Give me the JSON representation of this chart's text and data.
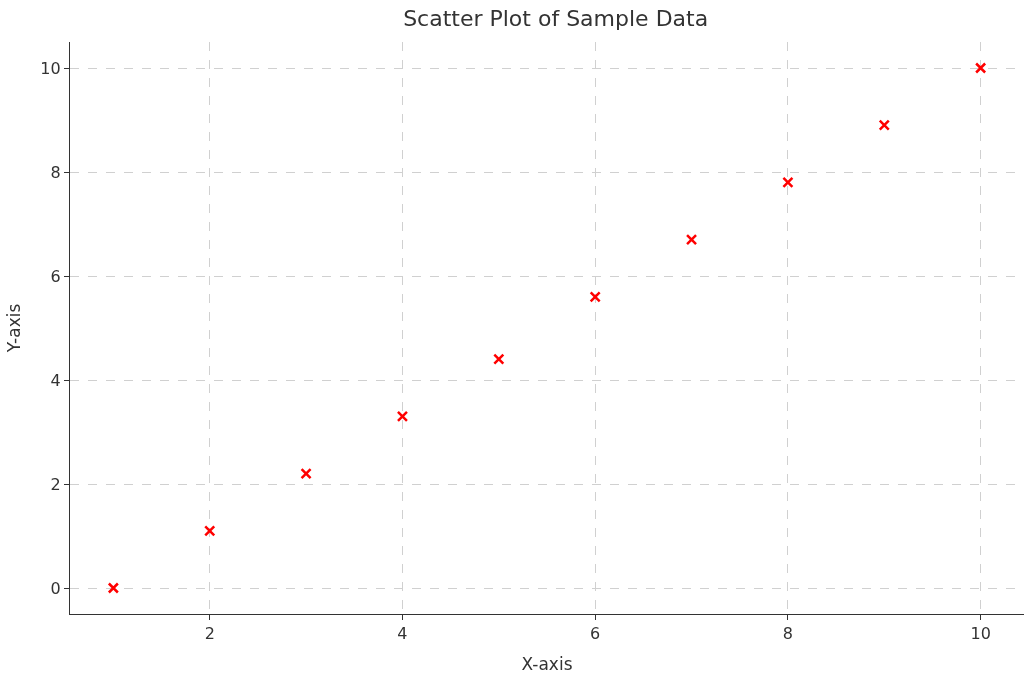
{
  "chart_data": {
    "type": "scatter",
    "title": "Scatter Plot of Sample Data",
    "xlabel": "X-axis",
    "ylabel": "Y-axis",
    "x": [
      1,
      2,
      3,
      4,
      5,
      6,
      7,
      8,
      9,
      10
    ],
    "series": [
      {
        "color": "#ff0000",
        "values": [
          0,
          1.1,
          2.2,
          3.3,
          4.4,
          5.6,
          6.7,
          7.8,
          8.9,
          10
        ]
      }
    ],
    "xlim": [
      0.55,
      10.45
    ],
    "xticks": [
      2,
      4,
      6,
      8,
      10
    ],
    "ylim": [
      -0.5,
      10.5
    ],
    "yticks": [
      0,
      2,
      4,
      6,
      8,
      10
    ],
    "grid": true,
    "marker": "cross"
  }
}
